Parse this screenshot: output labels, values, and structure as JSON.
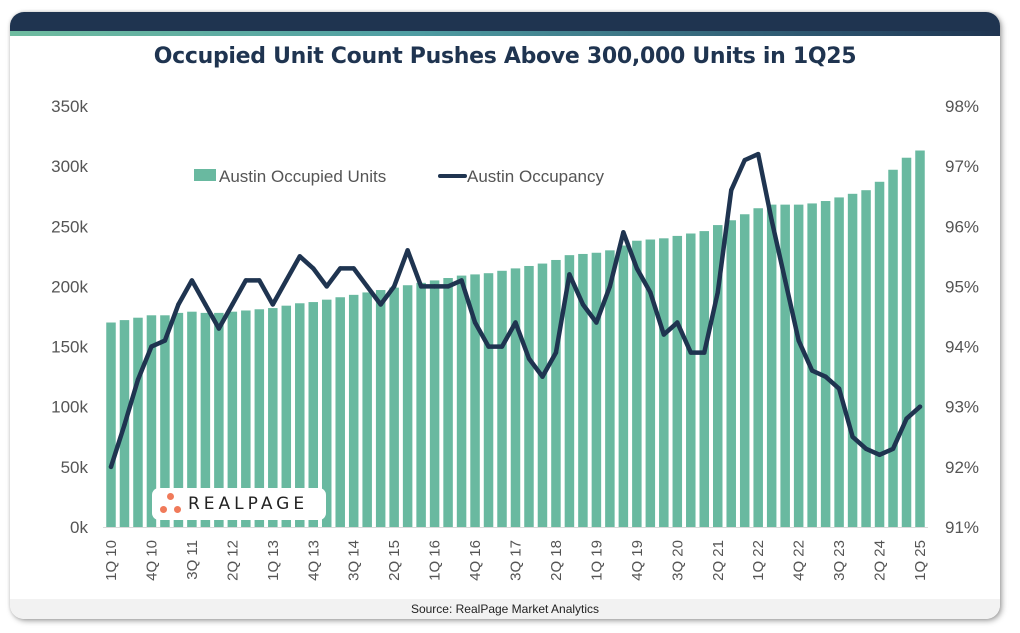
{
  "title": "Occupied Unit Count Pushes Above 300,000 Units in 1Q25",
  "source": "Source: RealPage Market Analytics",
  "logo": {
    "text": "REALPAGE"
  },
  "colors": {
    "bar": "#69b9a0",
    "line": "#1f3450",
    "header": "#1f3450",
    "logo_dots": "#f07a5a"
  },
  "chart_data": {
    "type": "bar+line",
    "title": "Occupied Unit Count Pushes Above 300,000 Units in 1Q25",
    "xlabel": "",
    "ylabel_left": "",
    "ylabel_right": "",
    "legend_position": "top-left",
    "grid": false,
    "y_left": {
      "range": [
        0,
        350000
      ],
      "ticks": [
        0,
        50000,
        100000,
        150000,
        200000,
        250000,
        300000,
        350000
      ],
      "tick_labels": [
        "0k",
        "50k",
        "100k",
        "150k",
        "200k",
        "250k",
        "300k",
        "350k"
      ]
    },
    "y_right": {
      "range": [
        91,
        98
      ],
      "ticks": [
        91,
        92,
        93,
        94,
        95,
        96,
        97,
        98
      ],
      "tick_labels": [
        "91%",
        "92%",
        "93%",
        "94%",
        "95%",
        "96%",
        "97%",
        "98%"
      ]
    },
    "x_tick_labels": [
      "1Q 10",
      "4Q 10",
      "3Q 11",
      "2Q 12",
      "1Q 13",
      "4Q 13",
      "3Q 14",
      "2Q 15",
      "1Q 16",
      "4Q 16",
      "3Q 17",
      "2Q 18",
      "1Q 19",
      "4Q 19",
      "3Q 20",
      "2Q 21",
      "1Q 22",
      "4Q 22",
      "3Q 23",
      "2Q 24",
      "1Q 25"
    ],
    "x_tick_every": 3,
    "categories": [
      "1Q10",
      "2Q10",
      "3Q10",
      "4Q10",
      "1Q11",
      "2Q11",
      "3Q11",
      "4Q11",
      "1Q12",
      "2Q12",
      "3Q12",
      "4Q12",
      "1Q13",
      "2Q13",
      "3Q13",
      "4Q13",
      "1Q14",
      "2Q14",
      "3Q14",
      "4Q14",
      "1Q15",
      "2Q15",
      "3Q15",
      "4Q15",
      "1Q16",
      "2Q16",
      "3Q16",
      "4Q16",
      "1Q17",
      "2Q17",
      "3Q17",
      "4Q17",
      "1Q18",
      "2Q18",
      "3Q18",
      "4Q18",
      "1Q19",
      "2Q19",
      "3Q19",
      "4Q19",
      "1Q20",
      "2Q20",
      "3Q20",
      "4Q20",
      "1Q21",
      "2Q21",
      "3Q21",
      "4Q21",
      "1Q22",
      "2Q22",
      "3Q22",
      "4Q22",
      "1Q23",
      "2Q23",
      "3Q23",
      "4Q23",
      "1Q24",
      "2Q24",
      "3Q24",
      "4Q24",
      "1Q25"
    ],
    "series": [
      {
        "name": "Austin Occupied Units",
        "type": "bar",
        "axis": "left",
        "values": [
          170000,
          172000,
          174000,
          176000,
          176000,
          178000,
          179000,
          178000,
          178000,
          179000,
          180000,
          181000,
          182000,
          184000,
          186000,
          187000,
          189000,
          191000,
          193000,
          195000,
          197000,
          199000,
          201000,
          203000,
          205000,
          207000,
          209000,
          210000,
          211000,
          213000,
          215000,
          217000,
          219000,
          222000,
          226000,
          227000,
          228000,
          230000,
          234000,
          238000,
          239000,
          240000,
          242000,
          244000,
          246000,
          251000,
          255000,
          260000,
          265000,
          268000,
          268000,
          268000,
          269000,
          271000,
          274000,
          277000,
          280000,
          287000,
          297000,
          307000,
          313000
        ]
      },
      {
        "name": "Austin Occupancy",
        "type": "line",
        "axis": "right",
        "values": [
          92.0,
          92.7,
          93.45,
          94.0,
          94.1,
          94.7,
          95.1,
          94.7,
          94.3,
          94.7,
          95.1,
          95.1,
          94.7,
          95.1,
          95.5,
          95.3,
          95.0,
          95.3,
          95.3,
          95.0,
          94.7,
          95.0,
          95.6,
          95.0,
          95.0,
          95.0,
          95.1,
          94.4,
          94.0,
          94.0,
          94.4,
          93.8,
          93.5,
          93.9,
          95.2,
          94.7,
          94.4,
          95.0,
          95.9,
          95.3,
          94.9,
          94.2,
          94.4,
          93.9,
          93.9,
          94.9,
          96.6,
          97.1,
          97.2,
          96.1,
          95.1,
          94.1,
          93.6,
          93.5,
          93.3,
          92.5,
          92.3,
          92.2,
          92.3,
          92.8,
          93.0
        ]
      }
    ]
  }
}
